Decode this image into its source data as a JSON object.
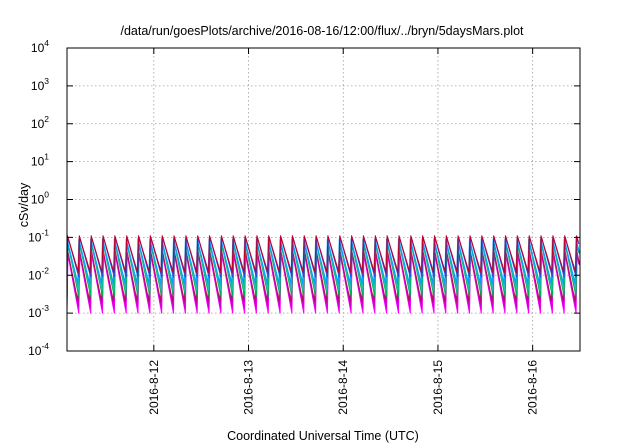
{
  "chart_data": {
    "type": "line",
    "title": "/data/run/goesPlots/archive/2016-08-16/12:00/flux/../bryn/5daysMars.plot",
    "xlabel": "Coordinated Universal Time (UTC)",
    "ylabel": "cSv/day",
    "yscale": "log",
    "ylim": [
      0.0001,
      10000
    ],
    "xlim": [
      "2016-08-11 02:00",
      "2016-08-16 12:00"
    ],
    "grid": true,
    "legend": "none",
    "y_ticks": [
      {
        "base": "10",
        "exp": "-4",
        "value": 0.0001
      },
      {
        "base": "10",
        "exp": "-3",
        "value": 0.001
      },
      {
        "base": "10",
        "exp": "-2",
        "value": 0.01
      },
      {
        "base": "10",
        "exp": "-1",
        "value": 0.1
      },
      {
        "base": "10",
        "exp": "0",
        "value": 1
      },
      {
        "base": "10",
        "exp": "1",
        "value": 10
      },
      {
        "base": "10",
        "exp": "2",
        "value": 100
      },
      {
        "base": "10",
        "exp": "3",
        "value": 1000
      },
      {
        "base": "10",
        "exp": "4",
        "value": 10000
      }
    ],
    "x_ticks": [
      {
        "label": "2016-8-12",
        "value": "2016-08-12 00:00"
      },
      {
        "label": "2016-8-13",
        "value": "2016-08-13 00:00"
      },
      {
        "label": "2016-8-14",
        "value": "2016-08-14 00:00"
      },
      {
        "label": "2016-8-15",
        "value": "2016-08-15 00:00"
      },
      {
        "label": "2016-8-16",
        "value": "2016-08-16 00:00"
      }
    ],
    "pattern": {
      "cycle_hours": 3,
      "description_free": true
    },
    "series": [
      {
        "color": "#ff00ff",
        "peak": 0.035,
        "trough": 0.001
      },
      {
        "color": "#d000d0",
        "peak": 0.045,
        "trough": 0.0014
      },
      {
        "color": "#b01060",
        "peak": 0.055,
        "trough": 0.002
      },
      {
        "color": "#00b050",
        "peak": 0.065,
        "trough": 0.0028
      },
      {
        "color": "#20c0b0",
        "peak": 0.08,
        "trough": 0.004
      },
      {
        "color": "#00a0ff",
        "peak": 0.09,
        "trough": 0.006
      },
      {
        "color": "#2050e0",
        "peak": 0.1,
        "trough": 0.009
      },
      {
        "color": "#c00030",
        "peak": 0.11,
        "trough": 0.012
      }
    ]
  }
}
